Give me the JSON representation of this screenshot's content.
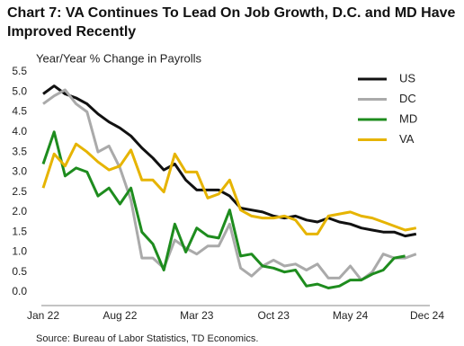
{
  "chart_data": {
    "type": "line",
    "title": "Chart 7: VA Continues To Lead On Job Growth, D.C. and MD Have Improved Recently",
    "subtitle": "Year/Year % Change in Payrolls",
    "source": "Source: Bureau of Labor Statistics, TD Economics.",
    "categories": [
      "Jan 22",
      null,
      null,
      null,
      null,
      null,
      null,
      "Aug 22",
      null,
      null,
      null,
      null,
      null,
      null,
      "Mar 23",
      null,
      null,
      null,
      null,
      null,
      null,
      "Oct 23",
      null,
      null,
      null,
      null,
      null,
      null,
      "May 24",
      null,
      null,
      null,
      null,
      null,
      null,
      "Dec 24"
    ],
    "series": [
      {
        "name": "US",
        "color": "#111111",
        "values": [
          4.95,
          5.15,
          4.95,
          4.85,
          4.7,
          4.45,
          4.25,
          4.1,
          3.9,
          3.6,
          3.35,
          3.05,
          3.2,
          2.8,
          2.55,
          2.55,
          2.55,
          2.4,
          2.1,
          2.05,
          2.0,
          1.9,
          1.85,
          1.9,
          1.8,
          1.75,
          1.85,
          1.75,
          1.7,
          1.6,
          1.55,
          1.5,
          1.5,
          1.4,
          1.45,
          null
        ]
      },
      {
        "name": "DC",
        "color": "#aaaaaa",
        "values": [
          4.7,
          4.9,
          5.05,
          4.7,
          4.5,
          3.5,
          3.65,
          3.1,
          2.3,
          0.85,
          0.85,
          0.6,
          1.3,
          1.1,
          0.95,
          1.15,
          1.15,
          1.7,
          0.6,
          0.4,
          0.65,
          0.8,
          0.65,
          0.7,
          0.55,
          0.7,
          0.35,
          0.35,
          0.65,
          0.3,
          0.5,
          0.95,
          0.85,
          0.85,
          0.95,
          null
        ]
      },
      {
        "name": "MD",
        "color": "#1e8c1e",
        "values": [
          3.2,
          4.0,
          2.9,
          3.1,
          3.0,
          2.4,
          2.6,
          2.2,
          2.6,
          1.5,
          1.2,
          0.55,
          1.7,
          1.0,
          1.6,
          1.4,
          1.35,
          2.05,
          0.9,
          0.95,
          0.65,
          0.6,
          0.5,
          0.55,
          0.15,
          0.2,
          0.1,
          0.15,
          0.3,
          0.3,
          0.45,
          0.55,
          0.85,
          0.9,
          null,
          null
        ]
      },
      {
        "name": "VA",
        "color": "#e6b400",
        "values": [
          2.6,
          3.45,
          3.15,
          3.7,
          3.5,
          3.25,
          3.05,
          3.15,
          3.55,
          2.8,
          2.8,
          2.5,
          3.45,
          3.0,
          3.0,
          2.35,
          2.45,
          2.8,
          2.05,
          1.9,
          1.85,
          1.85,
          1.9,
          1.8,
          1.45,
          1.45,
          1.9,
          1.95,
          2.0,
          1.9,
          1.85,
          1.75,
          1.65,
          1.55,
          1.6,
          null
        ]
      }
    ],
    "ylim": [
      0,
      5.5
    ],
    "yticks": [
      {
        "value": 0,
        "label": "0.0"
      },
      {
        "value": 0.5,
        "label": "0.5"
      },
      {
        "value": 1,
        "label": "1.0"
      },
      {
        "value": 1.5,
        "label": "1.5"
      },
      {
        "value": 2,
        "label": "2.0"
      },
      {
        "value": 2.5,
        "label": "2.5"
      },
      {
        "value": 3,
        "label": "3.0"
      },
      {
        "value": 3.5,
        "label": "3.5"
      },
      {
        "value": 4,
        "label": "4.0"
      },
      {
        "value": 4.5,
        "label": "4.5"
      },
      {
        "value": 5,
        "label": "5.0"
      },
      {
        "value": 5.5,
        "label": "5.5"
      }
    ],
    "grid": false,
    "legend": "top-right"
  }
}
